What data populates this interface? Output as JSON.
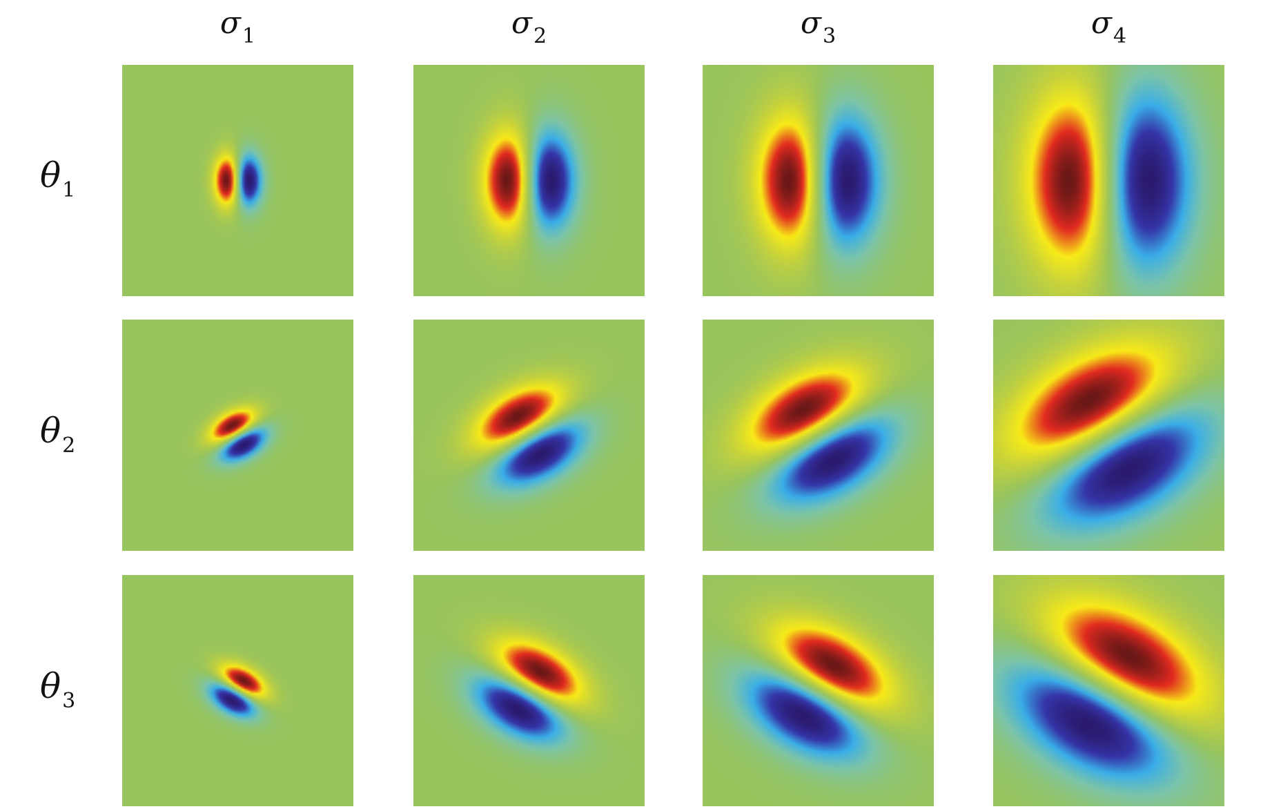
{
  "chart_data": {
    "type": "heatmap",
    "title": "",
    "column_labels": [
      {
        "symbol": "σ",
        "index": "1"
      },
      {
        "symbol": "σ",
        "index": "2"
      },
      {
        "symbol": "σ",
        "index": "3"
      },
      {
        "symbol": "σ",
        "index": "4"
      }
    ],
    "row_labels": [
      {
        "symbol": "θ",
        "index": "1"
      },
      {
        "symbol": "θ",
        "index": "2"
      },
      {
        "symbol": "θ",
        "index": "3"
      }
    ],
    "sigma_fraction_of_panel": [
      0.05,
      0.097,
      0.13,
      0.175
    ],
    "elongation": 1.6,
    "theta_degrees": [
      0,
      60,
      120
    ],
    "colormap": [
      "#2b1a6e",
      "#3535a8",
      "#3aaee8",
      "#7cc4a8",
      "#98c45e",
      "#c6d23c",
      "#f8ea18",
      "#e22a20",
      "#6a1818"
    ],
    "background": "#98c45e"
  }
}
